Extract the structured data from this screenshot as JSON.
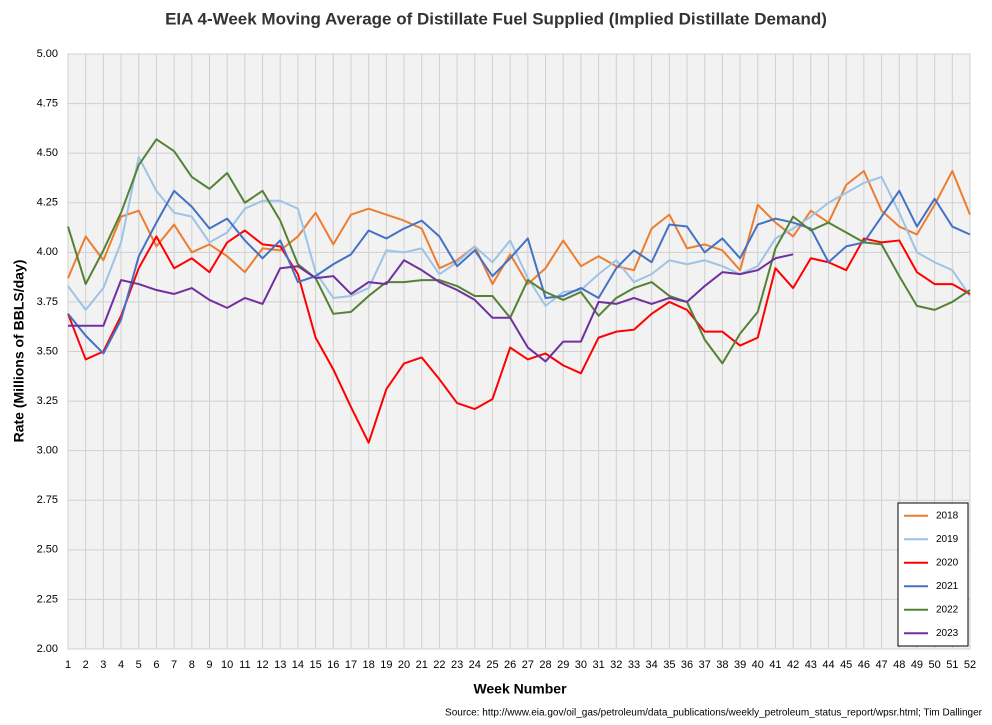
{
  "chart_data": {
    "type": "line",
    "title": "EIA 4-Week Moving Average of Distillate Fuel Supplied (Implied Distillate Demand)",
    "x_label": "Week Number",
    "y_label": "Rate (Millions of BBLS/day)",
    "source": "Source: http://www.eia.gov/oil_gas/petroleum/data_publications/weekly_petroleum_status_report/wpsr.html; Tim Dallinger",
    "x": [
      1,
      2,
      3,
      4,
      5,
      6,
      7,
      8,
      9,
      10,
      11,
      12,
      13,
      14,
      15,
      16,
      17,
      18,
      19,
      20,
      21,
      22,
      23,
      24,
      25,
      26,
      27,
      28,
      29,
      30,
      31,
      32,
      33,
      34,
      35,
      36,
      37,
      38,
      39,
      40,
      41,
      42,
      43,
      44,
      45,
      46,
      47,
      48,
      49,
      50,
      51,
      52
    ],
    "xlim": [
      1,
      52
    ],
    "xticks": [
      1,
      2,
      3,
      4,
      5,
      6,
      7,
      8,
      9,
      10,
      11,
      12,
      13,
      14,
      15,
      16,
      17,
      18,
      19,
      20,
      21,
      22,
      23,
      24,
      25,
      26,
      27,
      28,
      29,
      30,
      31,
      32,
      33,
      34,
      35,
      36,
      37,
      38,
      39,
      40,
      41,
      42,
      43,
      44,
      45,
      46,
      47,
      48,
      49,
      50,
      51,
      52
    ],
    "ylim": [
      2,
      5
    ],
    "yticks": [
      {
        "value": 2,
        "label": "2.00"
      },
      {
        "value": 2.25,
        "label": "2.25"
      },
      {
        "value": 2.5,
        "label": "2.50"
      },
      {
        "value": 2.75,
        "label": "2.75"
      },
      {
        "value": 3,
        "label": "3.00"
      },
      {
        "value": 3.25,
        "label": "3.25"
      },
      {
        "value": 3.5,
        "label": "3.50"
      },
      {
        "value": 3.75,
        "label": "3.75"
      },
      {
        "value": 4,
        "label": "4.00"
      },
      {
        "value": 4.25,
        "label": "4.25"
      },
      {
        "value": 4.5,
        "label": "4.50"
      },
      {
        "value": 4.75,
        "label": "4.75"
      },
      {
        "value": 5,
        "label": "5.00"
      }
    ],
    "grid": true,
    "legend": "lower right",
    "series": [
      {
        "name": "2018",
        "color": "#ed7d31",
        "values": [
          3.87,
          4.08,
          3.96,
          4.18,
          4.21,
          4.03,
          4.14,
          4.0,
          4.04,
          3.98,
          3.9,
          4.02,
          4.01,
          4.08,
          4.2,
          4.04,
          4.19,
          4.22,
          4.19,
          4.16,
          4.12,
          3.92,
          3.96,
          4.03,
          3.84,
          3.99,
          3.84,
          3.92,
          4.06,
          3.93,
          3.98,
          3.93,
          3.91,
          4.12,
          4.19,
          4.02,
          4.04,
          4.01,
          3.91,
          4.24,
          4.15,
          4.08,
          4.21,
          4.15,
          4.34,
          4.41,
          4.21,
          4.13,
          4.09,
          4.24,
          4.41,
          4.19
        ]
      },
      {
        "name": "2019",
        "color": "#9dc3e6",
        "values": [
          3.83,
          3.71,
          3.82,
          4.05,
          4.48,
          4.31,
          4.2,
          4.18,
          4.05,
          4.1,
          4.22,
          4.26,
          4.26,
          4.22,
          3.9,
          3.77,
          3.78,
          3.82,
          4.01,
          4.0,
          4.02,
          3.89,
          3.95,
          4.03,
          3.95,
          4.06,
          3.87,
          3.73,
          3.8,
          3.81,
          3.89,
          3.96,
          3.85,
          3.89,
          3.96,
          3.94,
          3.96,
          3.93,
          3.89,
          3.93,
          4.07,
          4.12,
          4.18,
          4.25,
          4.3,
          4.35,
          4.38,
          4.2,
          4.0,
          3.95,
          3.91,
          3.78
        ]
      },
      {
        "name": "2020",
        "color": "#ff0000",
        "values": [
          3.69,
          3.46,
          3.5,
          3.68,
          3.92,
          4.08,
          3.92,
          3.97,
          3.9,
          4.05,
          4.11,
          4.04,
          4.03,
          3.89,
          3.57,
          3.41,
          3.22,
          3.04,
          3.31,
          3.44,
          3.47,
          3.36,
          3.24,
          3.21,
          3.26,
          3.52,
          3.46,
          3.49,
          3.43,
          3.39,
          3.57,
          3.6,
          3.61,
          3.69,
          3.75,
          3.71,
          3.6,
          3.6,
          3.53,
          3.57,
          3.92,
          3.82,
          3.97,
          3.95,
          3.91,
          4.07,
          4.05,
          4.06,
          3.9,
          3.84,
          3.84,
          3.79
        ]
      },
      {
        "name": "2021",
        "color": "#4472c4",
        "values": [
          3.69,
          3.58,
          3.49,
          3.66,
          3.98,
          4.15,
          4.31,
          4.23,
          4.12,
          4.17,
          4.06,
          3.97,
          4.06,
          3.85,
          3.88,
          3.94,
          3.99,
          4.11,
          4.07,
          4.12,
          4.16,
          4.08,
          3.93,
          4.01,
          3.88,
          3.97,
          4.07,
          3.77,
          3.78,
          3.82,
          3.77,
          3.92,
          4.01,
          3.95,
          4.14,
          4.13,
          4.0,
          4.07,
          3.97,
          4.14,
          4.17,
          4.15,
          4.12,
          3.95,
          4.03,
          4.05,
          4.18,
          4.31,
          4.13,
          4.27,
          4.13,
          4.09
        ]
      },
      {
        "name": "2022",
        "color": "#548235",
        "values": [
          4.13,
          3.84,
          4.01,
          4.2,
          4.44,
          4.57,
          4.51,
          4.38,
          4.32,
          4.4,
          4.25,
          4.31,
          4.16,
          3.94,
          3.87,
          3.69,
          3.7,
          3.78,
          3.85,
          3.85,
          3.86,
          3.86,
          3.83,
          3.78,
          3.78,
          3.67,
          3.86,
          3.8,
          3.76,
          3.8,
          3.68,
          3.77,
          3.82,
          3.85,
          3.78,
          3.75,
          3.56,
          3.44,
          3.59,
          3.7,
          4.02,
          4.18,
          4.11,
          4.15,
          4.1,
          4.05,
          4.04,
          3.88,
          3.73,
          3.71,
          3.75,
          3.81
        ]
      },
      {
        "name": "2023",
        "color": "#7030a0",
        "values": [
          3.63,
          3.63,
          3.63,
          3.86,
          3.84,
          3.81,
          3.79,
          3.82,
          3.76,
          3.72,
          3.77,
          3.74,
          3.92,
          3.93,
          3.87,
          3.88,
          3.79,
          3.85,
          3.84,
          3.96,
          3.91,
          3.85,
          3.81,
          3.76,
          3.67,
          3.67,
          3.52,
          3.45,
          3.55,
          3.55,
          3.75,
          3.74,
          3.77,
          3.74,
          3.77,
          3.75,
          3.83,
          3.9,
          3.89,
          3.91,
          3.97,
          3.99,
          null,
          null,
          null,
          null,
          null,
          null,
          null,
          null,
          null,
          null
        ]
      }
    ]
  }
}
